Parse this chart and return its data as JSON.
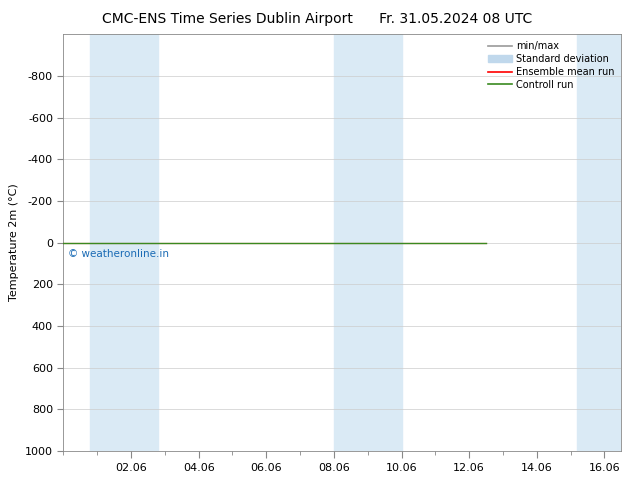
{
  "title_left": "CMC-ENS Time Series Dublin Airport",
  "title_right": "Fr. 31.05.2024 08 UTC",
  "ylabel": "Temperature 2m (°C)",
  "watermark": "© weatheronline.in",
  "watermark_color": "#1a6bb5",
  "ylim_bottom": 1000,
  "ylim_top": -1000,
  "yticks": [
    -800,
    -600,
    -400,
    -200,
    0,
    200,
    400,
    600,
    800,
    1000
  ],
  "xtick_labels": [
    "02.06",
    "04.06",
    "06.06",
    "08.06",
    "10.06",
    "12.06",
    "14.06",
    "16.06"
  ],
  "xtick_positions": [
    2,
    4,
    6,
    8,
    10,
    12,
    14,
    16
  ],
  "xlim_left": 0.0,
  "xlim_right": 16.5,
  "shaded_bands": [
    {
      "x_start": 0.8,
      "x_end": 2.8
    },
    {
      "x_start": 8.0,
      "x_end": 10.0
    },
    {
      "x_start": 15.2,
      "x_end": 16.5
    }
  ],
  "shade_color": "#daeaf5",
  "control_run_color": "#3a8a20",
  "ensemble_mean_color": "#ff0000",
  "minmax_color": "#999999",
  "std_dev_color": "#c0d8ec",
  "background_color": "#ffffff",
  "legend_entries": [
    "min/max",
    "Standard deviation",
    "Ensemble mean run",
    "Controll run"
  ],
  "legend_colors": [
    "#999999",
    "#c0d8ec",
    "#ff0000",
    "#3a8a20"
  ],
  "grid_color": "#cccccc",
  "spine_color": "#888888",
  "font_size": 8,
  "title_font_size": 10,
  "control_x_end": 12.5
}
